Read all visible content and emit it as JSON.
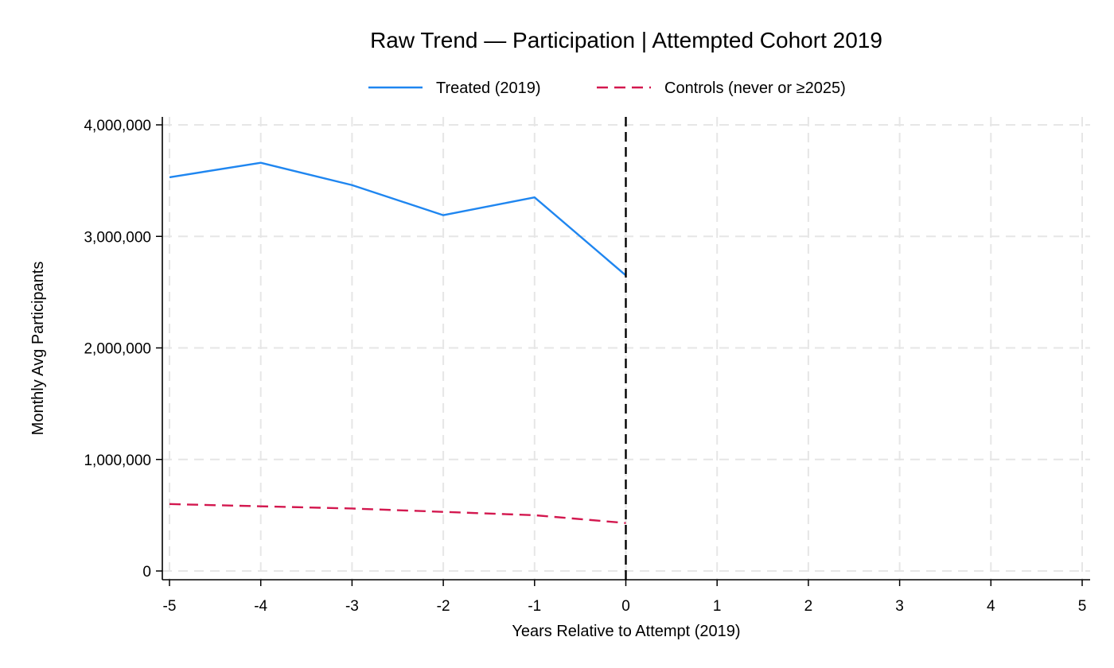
{
  "chart_data": {
    "type": "line",
    "title": "Raw Trend — Participation | Attempted Cohort 2019",
    "xlabel": "Years Relative to Attempt (2019)",
    "ylabel": "Monthly Avg Participants",
    "xlim": [
      -5,
      5
    ],
    "ylim": [
      0,
      4000000
    ],
    "xticks": [
      -5,
      -4,
      -3,
      -2,
      -1,
      0,
      1,
      2,
      3,
      4,
      5
    ],
    "xtick_labels": [
      "-5",
      "-4",
      "-3",
      "-2",
      "-1",
      "0",
      "1",
      "2",
      "3",
      "4",
      "5"
    ],
    "yticks": [
      0,
      1000000,
      2000000,
      3000000,
      4000000
    ],
    "ytick_labels": [
      "0",
      "1,000,000",
      "2,000,000",
      "3,000,000",
      "4,000,000"
    ],
    "grid": true,
    "legend_position": "top",
    "reference_line": {
      "x": 0,
      "style": "dashed",
      "color": "#000000"
    },
    "series": [
      {
        "name": "Treated (2019)",
        "color": "#1f86f0",
        "style": "solid",
        "x": [
          -5,
          -4,
          -3,
          -2,
          -1,
          0
        ],
        "values": [
          3530000,
          3660000,
          3460000,
          3190000,
          3350000,
          2650000
        ]
      },
      {
        "name": "Controls (never or ≥2025)",
        "color": "#d3184f",
        "style": "dashed",
        "x": [
          -5,
          -4,
          -3,
          -2,
          -1,
          0
        ],
        "values": [
          600000,
          580000,
          560000,
          530000,
          500000,
          430000
        ]
      }
    ]
  }
}
